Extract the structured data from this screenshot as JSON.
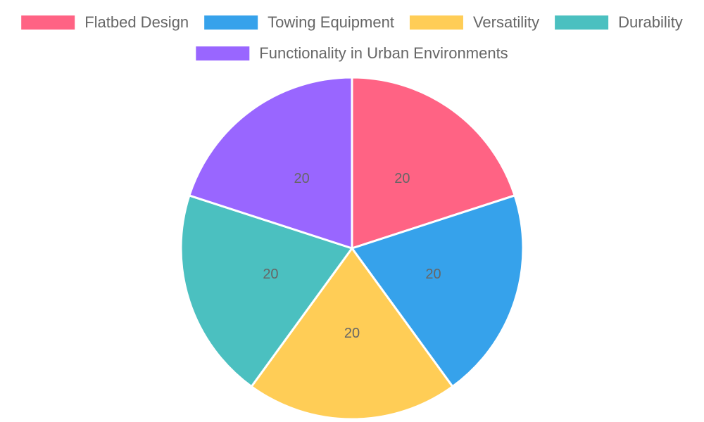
{
  "chart_data": {
    "type": "pie",
    "categories": [
      "Flatbed Design",
      "Towing Equipment",
      "Versatility",
      "Durability",
      "Functionality in Urban Environments"
    ],
    "values": [
      20,
      20,
      20,
      20,
      20
    ],
    "colors": [
      "#ff6384",
      "#36a2eb",
      "#ffcd56",
      "#4bc0c0",
      "#9966ff"
    ],
    "legend": "top"
  }
}
